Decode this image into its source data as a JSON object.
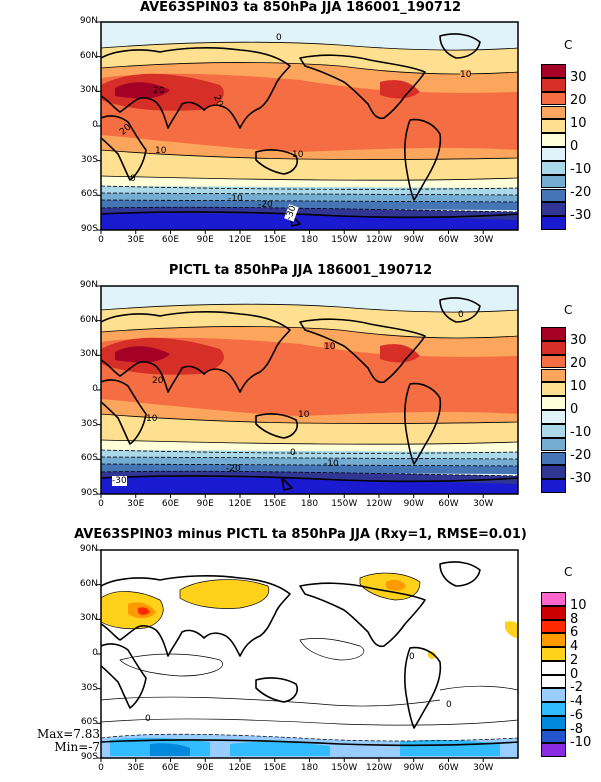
{
  "panels": [
    {
      "title": "AVE63SPIN03 ta 850hPa JJA 186001_190712",
      "unit": "C",
      "contour_labels": [
        "0",
        "10",
        "20",
        "20",
        "20",
        "10",
        "10",
        "0",
        "-10",
        "-20",
        "-30"
      ],
      "colorbar": {
        "labels": [
          "30",
          "20",
          "10",
          "0",
          "-10",
          "-20",
          "-30"
        ],
        "colors": [
          "#a50026",
          "#d62f27",
          "#f46d43",
          "#fca55d",
          "#fee090",
          "#ffffd9",
          "#e0f3f8",
          "#abd9e9",
          "#74add1",
          "#4575b4",
          "#313695",
          "#1a1ad0"
        ]
      }
    },
    {
      "title": "PICTL ta 850hPa JJA 186001_190712",
      "unit": "C",
      "contour_labels": [
        "0",
        "10",
        "20",
        "10",
        "10",
        "0",
        "-10",
        "-20",
        "-30"
      ],
      "colorbar": {
        "labels": [
          "30",
          "20",
          "10",
          "0",
          "-10",
          "-20",
          "-30"
        ],
        "colors": [
          "#a50026",
          "#d62f27",
          "#f46d43",
          "#fca55d",
          "#fee090",
          "#ffffd9",
          "#e0f3f8",
          "#abd9e9",
          "#74add1",
          "#4575b4",
          "#313695",
          "#1a1ad0"
        ]
      }
    },
    {
      "title": "AVE63SPIN03 minus PICTL ta 850hPa JJA (Rxy=1, RMSE=0.01)",
      "unit": "C",
      "contour_labels": [
        "0",
        "0",
        "0"
      ],
      "colorbar": {
        "labels": [
          "10",
          "8",
          "6",
          "4",
          "2",
          "0",
          "-2",
          "-4",
          "-6",
          "-8",
          "-10"
        ],
        "colors": [
          "#ff66cc",
          "#cc0000",
          "#ff2a00",
          "#ff9900",
          "#ffd11a",
          "#ffffff",
          "#ffffff",
          "#99ccff",
          "#33bbff",
          "#0088dd",
          "#2255cc",
          "#8a2be2"
        ]
      },
      "stats": {
        "max": "Max=7.83",
        "min": "Min=-7"
      }
    }
  ],
  "lat_ticks": [
    "90N",
    "60N",
    "30N",
    "0",
    "30S",
    "60S",
    "90S"
  ],
  "lon_ticks": [
    "0",
    "30E",
    "60E",
    "90E",
    "120E",
    "150E",
    "180",
    "150W",
    "120W",
    "90W",
    "60W",
    "30W"
  ]
}
